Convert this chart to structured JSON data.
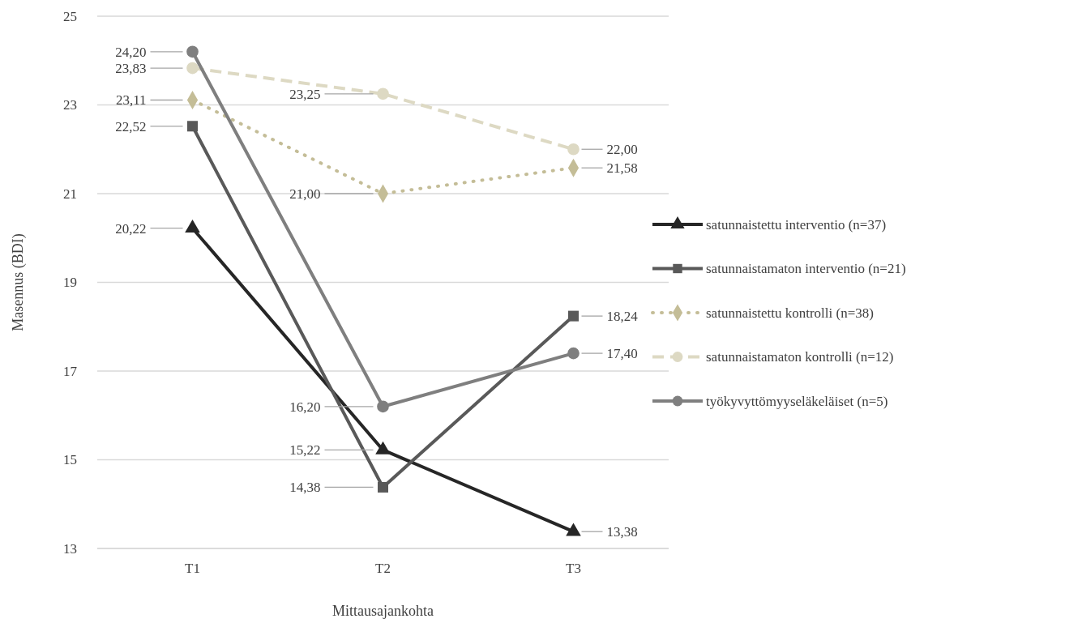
{
  "chart_data": {
    "type": "line",
    "xlabel": "Mittausajankohta",
    "ylabel": "Masennus (BDI)",
    "categories": [
      "T1",
      "T2",
      "T3"
    ],
    "ylim": [
      13,
      25
    ],
    "yticks": [
      13,
      15,
      17,
      19,
      21,
      23,
      25
    ],
    "grid": "y",
    "legend": "right",
    "series": [
      {
        "name": "satunnaistettu interventio (n=37)",
        "color": "#262626",
        "marker": "triangle",
        "line_style": "solid",
        "values": [
          20.22,
          15.22,
          13.38
        ],
        "value_labels": [
          "20,22",
          "15,22",
          "13,38"
        ]
      },
      {
        "name": "satunnaistamaton interventio (n=21)",
        "color": "#595959",
        "marker": "square",
        "line_style": "solid",
        "values": [
          22.52,
          14.38,
          18.24
        ],
        "value_labels": [
          "22,52",
          "14,38",
          "18,24"
        ]
      },
      {
        "name": "satunnaistettu kontrolli (n=38)",
        "color": "#c4bd97",
        "marker": "diamond",
        "line_style": "dotted",
        "values": [
          23.11,
          21.0,
          21.58
        ],
        "value_labels": [
          "23,11",
          "21,00",
          "21,58"
        ]
      },
      {
        "name": "satunnaistamaton kontrolli (n=12)",
        "color": "#ddd9c3",
        "marker": "circle",
        "line_style": "dashed",
        "values": [
          23.83,
          23.25,
          22.0
        ],
        "value_labels": [
          "23,83",
          "23,25",
          "22,00"
        ]
      },
      {
        "name": "työkyvyttömyyseläkeläiset (n=5)",
        "color": "#7f7f7f",
        "marker": "circle",
        "line_style": "solid",
        "values": [
          24.2,
          16.2,
          17.4
        ],
        "value_labels": [
          "24,20",
          "16,20",
          "17,40"
        ]
      }
    ]
  }
}
